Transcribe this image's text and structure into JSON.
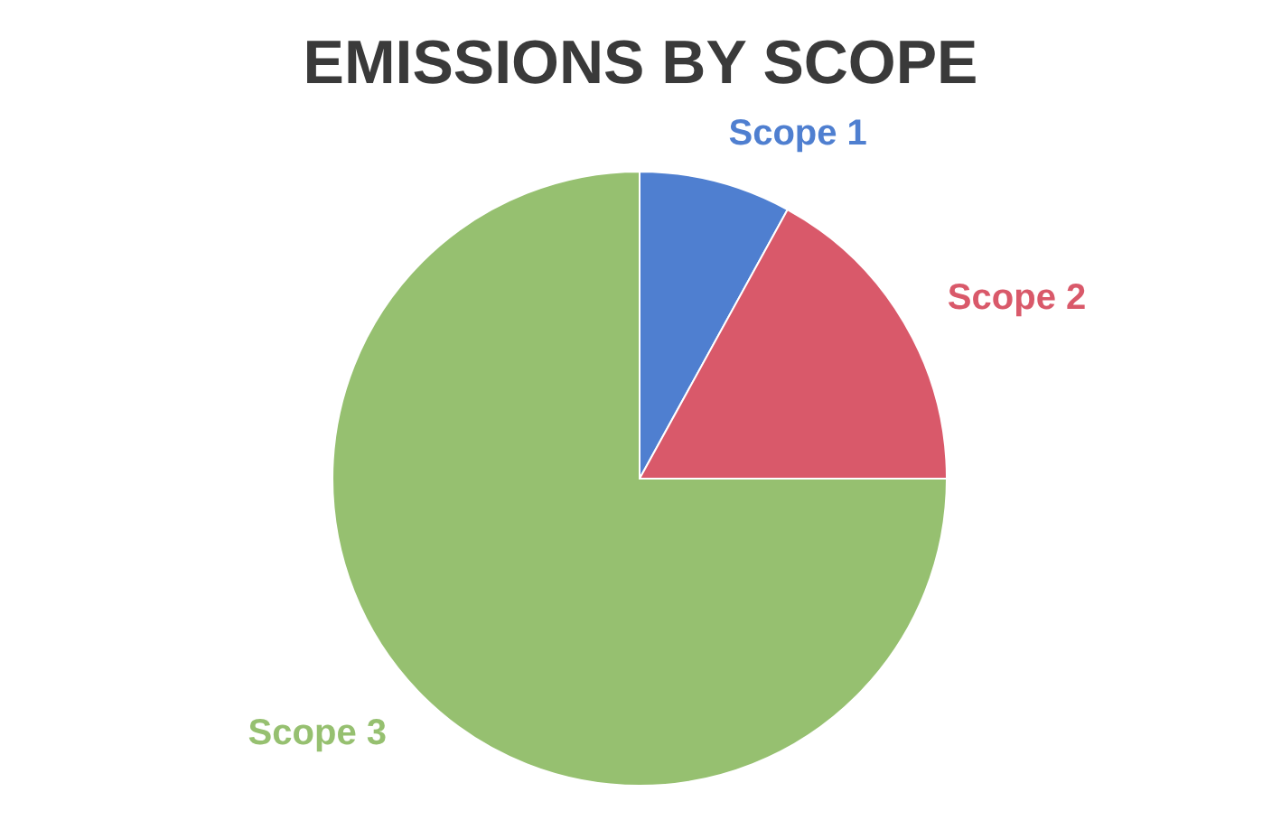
{
  "chart_data": {
    "type": "pie",
    "title": "EMISSIONS BY SCOPE",
    "categories": [
      "Scope 1",
      "Scope 2",
      "Scope 3"
    ],
    "values": [
      8,
      17,
      75
    ],
    "colors": [
      "#4f7fd0",
      "#d9596a",
      "#96c070"
    ]
  }
}
